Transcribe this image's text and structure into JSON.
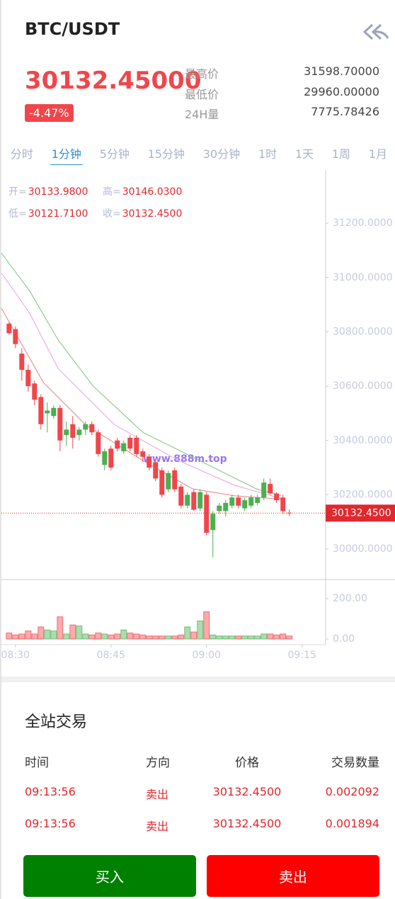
{
  "header": {
    "title": "BTC/USDT"
  },
  "ticker": {
    "price": "30132.45000",
    "change": "-4.47%",
    "stats": [
      {
        "label": "最高价",
        "value": "31598.70000"
      },
      {
        "label": "最低价",
        "value": "29960.00000"
      },
      {
        "label": "24H量",
        "value": "7775.78426"
      }
    ]
  },
  "tabs": [
    "分时",
    "1分钟",
    "5分钟",
    "15分钟",
    "30分钟",
    "1时",
    "1天",
    "1周",
    "1月"
  ],
  "active_tab": 1,
  "chart_data": {
    "type": "candlestick",
    "watermark": "www.888m.top",
    "info": [
      {
        "label": "开=",
        "value": "30133.9800"
      },
      {
        "label": "高=",
        "value": "30146.0300"
      },
      {
        "label": "低=",
        "value": "30121.7100"
      },
      {
        "label": "收=",
        "value": "30132.4500"
      }
    ],
    "up_color": "#4caf50",
    "down_color": "#f0464b",
    "x": [
      -1,
      0,
      1,
      2,
      3,
      4,
      5,
      6,
      7,
      8,
      9,
      10,
      11,
      12,
      13,
      14,
      15,
      16,
      17,
      18,
      19,
      20,
      21,
      22,
      23,
      24,
      25,
      26,
      27,
      28,
      29,
      30,
      31,
      32,
      33,
      34,
      35,
      36,
      37,
      38,
      39,
      40,
      41,
      42,
      43
    ],
    "open": [
      30830,
      30810,
      30720,
      30660,
      30610,
      30560,
      30500,
      30490,
      30520,
      30420,
      30460,
      30420,
      30440,
      30460,
      30430,
      30310,
      30370,
      30400,
      30360,
      30410,
      30410,
      30360,
      30340,
      30320,
      30290,
      30220,
      30290,
      30230,
      30160,
      30210,
      30150,
      30200,
      30070,
      30140,
      30140,
      30160,
      30190,
      30150,
      30160,
      30170,
      30190,
      30240,
      30205,
      30190,
      30133.98
    ],
    "high": [
      30835,
      30820,
      30740,
      30680,
      30620,
      30570,
      30540,
      30530,
      30530,
      30470,
      30490,
      30450,
      30470,
      30470,
      30440,
      30370,
      30380,
      30410,
      30400,
      30420,
      30420,
      30370,
      30350,
      30330,
      30300,
      30290,
      30300,
      30240,
      30210,
      30220,
      30220,
      30210,
      30140,
      30170,
      30180,
      30200,
      30200,
      30190,
      30200,
      30200,
      30260,
      30260,
      30210,
      30200,
      30146.03
    ],
    "low": [
      30790,
      30740,
      30620,
      30580,
      30530,
      30440,
      30430,
      30480,
      30360,
      30380,
      30370,
      30400,
      30420,
      30420,
      30340,
      30290,
      30290,
      30360,
      30350,
      30360,
      30340,
      30320,
      30290,
      30250,
      30190,
      30210,
      30210,
      30150,
      30150,
      30140,
      30140,
      30050,
      29970,
      30130,
      30120,
      30150,
      30150,
      30140,
      30150,
      30160,
      30180,
      30200,
      30170,
      30130,
      30121.71
    ],
    "close": [
      30795,
      30755,
      30660,
      30600,
      30550,
      30460,
      30510,
      30520,
      30400,
      30440,
      30410,
      30440,
      30460,
      30430,
      30350,
      30360,
      30300,
      30370,
      30390,
      30370,
      30350,
      30340,
      30300,
      30260,
      30200,
      30280,
      30220,
      30160,
      30200,
      30145,
      30210,
      30060,
      30130,
      30160,
      30170,
      30190,
      30160,
      30180,
      30190,
      30190,
      30245,
      30205,
      30180,
      30140,
      30132.45
    ],
    "ma": [
      {
        "color": "#7cc47c",
        "x": [
          -2.2,
          2.2,
          6.7,
          12.2,
          20,
          25.6,
          30,
          37.8,
          41.7
        ],
        "values": [
          31090,
          30952,
          30770,
          30600,
          30430,
          30365,
          30313,
          30222,
          30196
        ]
      },
      {
        "color": "#e8a0e8",
        "x": [
          -2.2,
          2.2,
          6.7,
          15.6,
          25.6,
          34.4,
          42.2
        ],
        "values": [
          31017,
          30870,
          30665,
          30457,
          30326,
          30235,
          30183
        ]
      },
      {
        "color": "#e88080",
        "x": [
          -2.2,
          4.4,
          11.1,
          20,
          27.8,
          34.4,
          42.2
        ],
        "values": [
          30887,
          30613,
          30456,
          30326,
          30222,
          30196,
          30183
        ]
      }
    ],
    "last_price": {
      "value": 30132.45,
      "label": "30132.4500"
    },
    "xlim": [
      -2.2,
      48.7
    ],
    "xticks": [
      {
        "value": 0,
        "label": "08:30"
      },
      {
        "value": 15,
        "label": "08:45"
      },
      {
        "value": 30,
        "label": "09:00"
      },
      {
        "value": 45,
        "label": "09:15"
      }
    ],
    "ylim": [
      29888,
      31396
    ],
    "yticks": [
      {
        "value": 30000,
        "label": "30000.0000"
      },
      {
        "value": 30200,
        "label": "30200.0000"
      },
      {
        "value": 30400,
        "label": "30400.0000"
      },
      {
        "value": 30600,
        "label": "30600.0000"
      },
      {
        "value": 30800,
        "label": "30800.0000"
      },
      {
        "value": 31000,
        "label": "31000.0000"
      },
      {
        "value": 31200,
        "label": "31200.0000"
      }
    ],
    "volume": {
      "values": [
        30,
        20,
        25,
        40,
        25,
        60,
        45,
        40,
        110,
        25,
        70,
        65,
        25,
        20,
        30,
        25,
        20,
        25,
        45,
        30,
        25,
        20,
        15,
        15,
        15,
        15,
        15,
        20,
        60,
        35,
        90,
        135,
        20,
        15,
        15,
        15,
        15,
        15,
        15,
        15,
        25,
        25,
        20,
        25,
        15
      ],
      "ylim": [
        -21,
        281
      ],
      "yticks": [
        {
          "value": 0,
          "label": "0.00"
        },
        {
          "value": 200,
          "label": "200.00"
        }
      ]
    }
  },
  "trades": {
    "title": "全站交易",
    "columns": [
      "时间",
      "方向",
      "价格",
      "交易数量"
    ],
    "rows": [
      [
        "09:13:56",
        "卖出",
        "30132.4500",
        "0.002092"
      ],
      [
        "09:13:56",
        "卖出",
        "30132.4500",
        "0.001894"
      ]
    ]
  },
  "buttons": {
    "buy": "买入",
    "sell": "卖出"
  }
}
